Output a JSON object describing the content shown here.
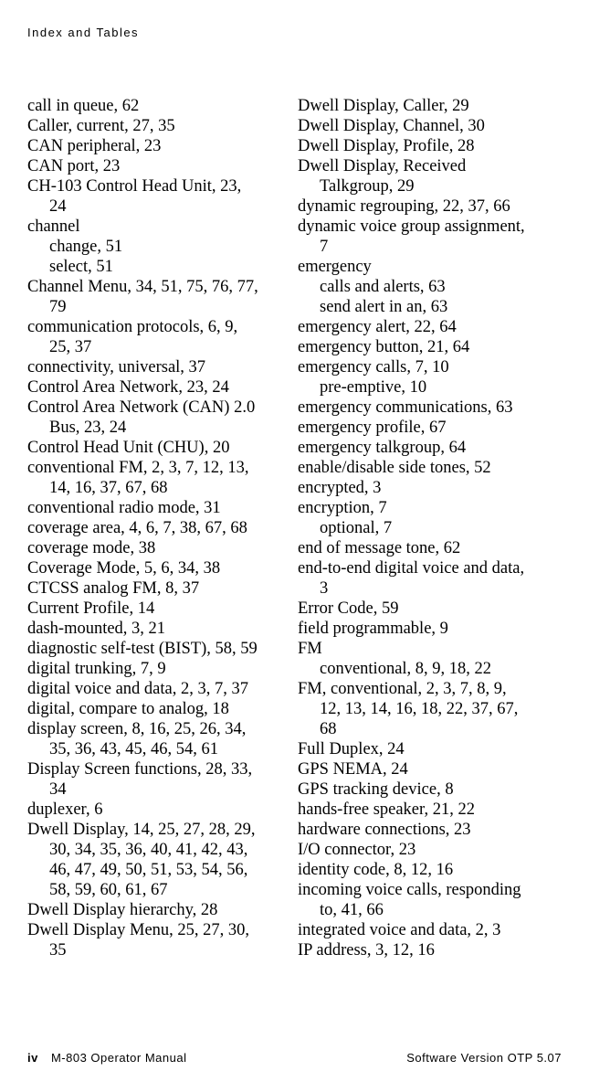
{
  "header": {
    "title": "Index and Tables"
  },
  "footer": {
    "page_num": "iv",
    "left_text": "M-803 Operator Manual",
    "right_text": "Software Version OTP 5.07"
  },
  "columns": {
    "left": [
      {
        "t": "call in queue, 62"
      },
      {
        "t": "Caller, current, 27, 35"
      },
      {
        "t": "CAN peripheral, 23"
      },
      {
        "t": "CAN port, 23"
      },
      {
        "t": "CH-103 Control Head Unit, 23,"
      },
      {
        "t": "24",
        "sub": true
      },
      {
        "t": "channel"
      },
      {
        "t": "change, 51",
        "sub": true
      },
      {
        "t": "select, 51",
        "sub": true
      },
      {
        "t": "Channel Menu, 34, 51, 75, 76, 77,"
      },
      {
        "t": "79",
        "sub": true
      },
      {
        "t": "communication protocols, 6, 9,"
      },
      {
        "t": "25, 37",
        "sub": true
      },
      {
        "t": "connectivity, universal, 37"
      },
      {
        "t": "Control Area Network, 23, 24"
      },
      {
        "t": "Control Area Network (CAN) 2.0"
      },
      {
        "t": "Bus, 23, 24",
        "sub": true
      },
      {
        "t": "Control Head Unit (CHU), 20"
      },
      {
        "t": "conventional FM, 2, 3, 7, 12, 13,"
      },
      {
        "t": "14, 16, 37, 67, 68",
        "sub": true
      },
      {
        "t": "conventional radio mode, 31"
      },
      {
        "t": "coverage area, 4, 6, 7, 38, 67, 68"
      },
      {
        "t": "coverage mode, 38"
      },
      {
        "t": "Coverage Mode, 5, 6, 34, 38"
      },
      {
        "t": "CTCSS analog FM, 8, 37"
      },
      {
        "t": "Current Profile, 14"
      },
      {
        "t": "dash-mounted, 3, 21"
      },
      {
        "t": "diagnostic self-test (BIST), 58, 59"
      },
      {
        "t": "digital trunking, 7, 9"
      },
      {
        "t": "digital voice and data, 2, 3, 7, 37"
      },
      {
        "t": "digital, compare to analog, 18"
      },
      {
        "t": "display screen, 8, 16, 25, 26, 34,"
      },
      {
        "t": "35, 36, 43, 45, 46, 54, 61",
        "sub": true
      },
      {
        "t": "Display Screen functions, 28, 33,"
      },
      {
        "t": "34",
        "sub": true
      },
      {
        "t": "duplexer, 6"
      },
      {
        "t": "Dwell Display, 14, 25, 27, 28, 29,"
      },
      {
        "t": "30, 34, 35, 36, 40, 41, 42, 43,",
        "sub": true
      },
      {
        "t": "46, 47, 49, 50, 51, 53, 54, 56,",
        "sub": true
      },
      {
        "t": "58, 59, 60, 61, 67",
        "sub": true
      },
      {
        "t": "Dwell Display hierarchy, 28"
      },
      {
        "t": "Dwell Display Menu, 25, 27, 30,"
      },
      {
        "t": "35",
        "sub": true
      }
    ],
    "right": [
      {
        "t": "Dwell Display, Caller, 29"
      },
      {
        "t": "Dwell Display, Channel, 30"
      },
      {
        "t": "Dwell Display, Profile, 28"
      },
      {
        "t": "Dwell Display, Received"
      },
      {
        "t": "Talkgroup, 29",
        "sub": true
      },
      {
        "t": "dynamic regrouping, 22, 37, 66"
      },
      {
        "t": "dynamic voice group assignment,"
      },
      {
        "t": "7",
        "sub": true
      },
      {
        "t": "emergency"
      },
      {
        "t": "calls and alerts, 63",
        "sub": true
      },
      {
        "t": "send alert in an, 63",
        "sub": true
      },
      {
        "t": "emergency alert, 22, 64"
      },
      {
        "t": "emergency button, 21, 64"
      },
      {
        "t": "emergency calls, 7, 10"
      },
      {
        "t": "pre-emptive, 10",
        "sub": true
      },
      {
        "t": "emergency communications, 63"
      },
      {
        "t": "emergency profile, 67"
      },
      {
        "t": "emergency talkgroup, 64"
      },
      {
        "t": "enable/disable side tones, 52"
      },
      {
        "t": "encrypted, 3"
      },
      {
        "t": "encryption, 7"
      },
      {
        "t": "optional, 7",
        "sub": true
      },
      {
        "t": "end of message tone, 62"
      },
      {
        "t": "end-to-end digital voice and data,"
      },
      {
        "t": "3",
        "sub": true
      },
      {
        "t": "Error Code, 59"
      },
      {
        "t": "field programmable, 9"
      },
      {
        "t": "FM"
      },
      {
        "t": "conventional, 8, 9, 18, 22",
        "sub": true
      },
      {
        "t": "FM, conventional, 2, 3, 7, 8, 9,"
      },
      {
        "t": "12, 13, 14, 16, 18, 22, 37, 67,",
        "sub": true
      },
      {
        "t": "68",
        "sub": true
      },
      {
        "t": "Full Duplex, 24"
      },
      {
        "t": "GPS NEMA, 24"
      },
      {
        "t": "GPS tracking device, 8"
      },
      {
        "t": "hands-free speaker, 21, 22"
      },
      {
        "t": "hardware connections, 23"
      },
      {
        "t": "I/O connector, 23"
      },
      {
        "t": "identity code, 8, 12, 16"
      },
      {
        "t": "incoming voice calls, responding"
      },
      {
        "t": "to, 41, 66",
        "sub": true
      },
      {
        "t": "integrated voice and data, 2, 3"
      },
      {
        "t": "IP address, 3, 12, 16"
      }
    ]
  }
}
